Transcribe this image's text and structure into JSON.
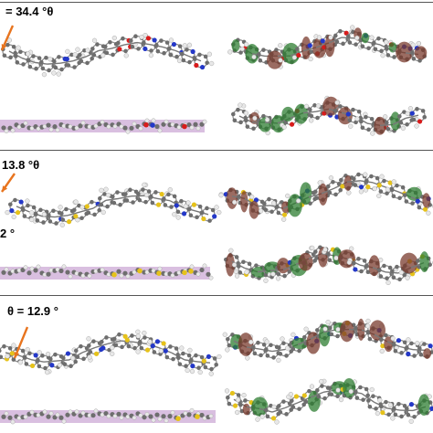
{
  "panels": [
    {
      "angle_label": "= 34.4 °θ"
    },
    {
      "angle_label": "13.8 °θ",
      "side_label": "2 °"
    },
    {
      "angle_label": "θ = 12.9 °"
    }
  ],
  "colors": {
    "plane": "#d9bfe0",
    "carbon": "#6e6e6e",
    "hydrogen": "#e8e8e8",
    "nitrogen": "#2438c8",
    "oxygen": "#d81c1c",
    "sulfur": "#e6c21a",
    "orbital_green": "#2e7d32",
    "orbital_brown": "#7a3b2e",
    "arrow": "#e8741e"
  }
}
